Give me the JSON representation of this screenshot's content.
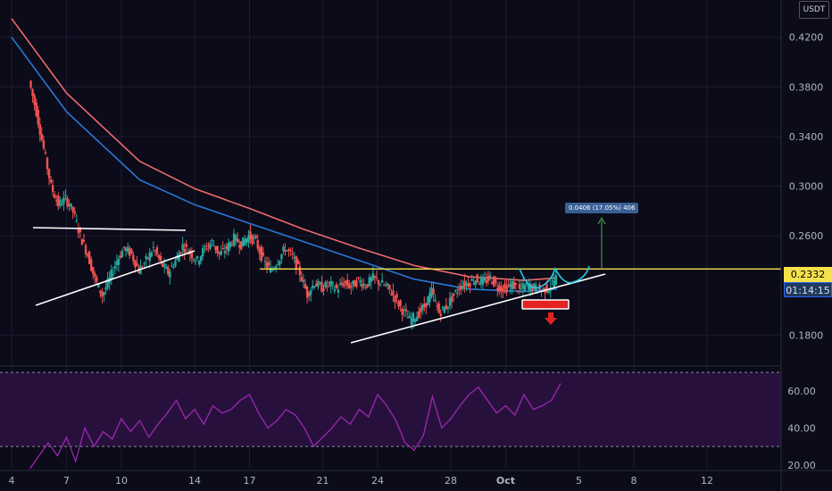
{
  "chart_data": [
    {
      "type": "candlestick",
      "unit": "USDT",
      "price_axis": {
        "ticks": [
          "0.4200",
          "0.3800",
          "0.3400",
          "0.3000",
          "0.2600",
          "0.1800"
        ],
        "tick_values": [
          0.42,
          0.38,
          0.34,
          0.3,
          0.26,
          0.18
        ],
        "range": [
          0.155,
          0.45
        ]
      },
      "time_axis": {
        "ticks": [
          "4",
          "7",
          "10",
          "14",
          "17",
          "21",
          "24",
          "28",
          "Oct",
          "5",
          "8",
          "12"
        ],
        "tick_days": [
          4,
          7,
          10,
          14,
          17,
          21,
          24,
          28,
          31,
          35,
          38,
          42
        ]
      },
      "current_price": "0.2332",
      "countdown": "01:14:15",
      "resistance_level": 0.2332,
      "measure_label": "0.0406 (17.05%) 406",
      "close_series": [
        [
          1.0,
          0.385
        ],
        [
          1.4,
          0.36
        ],
        [
          1.8,
          0.33
        ],
        [
          2.2,
          0.3
        ],
        [
          2.6,
          0.285
        ],
        [
          3.0,
          0.29
        ],
        [
          3.4,
          0.28
        ],
        [
          3.8,
          0.26
        ],
        [
          4.2,
          0.245
        ],
        [
          4.6,
          0.225
        ],
        [
          5.0,
          0.212
        ],
        [
          5.4,
          0.225
        ],
        [
          5.8,
          0.24
        ],
        [
          6.2,
          0.25
        ],
        [
          6.6,
          0.245
        ],
        [
          7.0,
          0.232
        ],
        [
          7.4,
          0.24
        ],
        [
          7.8,
          0.25
        ],
        [
          8.2,
          0.238
        ],
        [
          8.6,
          0.23
        ],
        [
          9.0,
          0.24
        ],
        [
          9.4,
          0.252
        ],
        [
          9.8,
          0.246
        ],
        [
          10.2,
          0.24
        ],
        [
          10.6,
          0.25
        ],
        [
          11.0,
          0.255
        ],
        [
          11.4,
          0.245
        ],
        [
          11.8,
          0.25
        ],
        [
          12.2,
          0.258
        ],
        [
          12.6,
          0.253
        ],
        [
          13.0,
          0.26
        ],
        [
          13.4,
          0.255
        ],
        [
          13.8,
          0.24
        ],
        [
          14.2,
          0.232
        ],
        [
          14.6,
          0.24
        ],
        [
          15.0,
          0.25
        ],
        [
          15.4,
          0.243
        ],
        [
          15.8,
          0.23
        ],
        [
          16.2,
          0.213
        ],
        [
          16.6,
          0.222
        ],
        [
          17.0,
          0.218
        ],
        [
          17.4,
          0.221
        ],
        [
          17.8,
          0.217
        ],
        [
          18.2,
          0.222
        ],
        [
          18.6,
          0.219
        ],
        [
          19.0,
          0.224
        ],
        [
          19.4,
          0.22
        ],
        [
          19.8,
          0.226
        ],
        [
          20.2,
          0.222
        ],
        [
          20.6,
          0.218
        ],
        [
          21.0,
          0.21
        ],
        [
          21.4,
          0.2
        ],
        [
          21.8,
          0.192
        ],
        [
          22.2,
          0.196
        ],
        [
          22.6,
          0.203
        ],
        [
          23.0,
          0.215
        ],
        [
          23.4,
          0.198
        ],
        [
          23.8,
          0.203
        ],
        [
          24.2,
          0.212
        ],
        [
          24.6,
          0.22
        ],
        [
          25.0,
          0.222
        ],
        [
          25.4,
          0.225
        ],
        [
          25.8,
          0.222
        ],
        [
          26.2,
          0.226
        ],
        [
          26.6,
          0.219
        ],
        [
          27.0,
          0.217
        ],
        [
          27.4,
          0.221
        ],
        [
          27.8,
          0.216
        ],
        [
          28.2,
          0.22
        ],
        [
          28.6,
          0.218
        ],
        [
          29.0,
          0.216
        ],
        [
          29.4,
          0.218
        ],
        [
          29.8,
          0.226
        ]
      ],
      "ema_fast": [
        [
          0,
          0.42
        ],
        [
          3,
          0.36
        ],
        [
          7,
          0.305
        ],
        [
          10,
          0.285
        ],
        [
          13,
          0.27
        ],
        [
          16,
          0.255
        ],
        [
          19,
          0.24
        ],
        [
          22,
          0.225
        ],
        [
          25,
          0.217
        ],
        [
          28,
          0.215
        ],
        [
          29.8,
          0.217
        ]
      ],
      "ema_slow": [
        [
          0,
          0.435
        ],
        [
          3,
          0.375
        ],
        [
          7,
          0.32
        ],
        [
          10,
          0.298
        ],
        [
          13,
          0.282
        ],
        [
          16,
          0.265
        ],
        [
          19,
          0.25
        ],
        [
          22,
          0.236
        ],
        [
          25,
          0.227
        ],
        [
          28,
          0.224
        ],
        [
          29.8,
          0.226
        ]
      ]
    },
    {
      "type": "line",
      "indicator": "RSI",
      "y_ticks": [
        "60.00",
        "40.00",
        "20.00"
      ],
      "y_tick_values": [
        60,
        40,
        20
      ],
      "range": [
        18,
        72
      ],
      "bands": [
        70,
        30
      ],
      "values": [
        [
          1.0,
          18
        ],
        [
          2.0,
          32
        ],
        [
          2.5,
          25
        ],
        [
          3.0,
          35
        ],
        [
          3.5,
          22
        ],
        [
          4.0,
          40
        ],
        [
          4.5,
          30
        ],
        [
          5.0,
          38
        ],
        [
          5.5,
          34
        ],
        [
          6.0,
          45
        ],
        [
          6.5,
          38
        ],
        [
          7.0,
          44
        ],
        [
          7.5,
          35
        ],
        [
          8.0,
          42
        ],
        [
          8.5,
          48
        ],
        [
          9.0,
          55
        ],
        [
          9.5,
          45
        ],
        [
          10.0,
          50
        ],
        [
          10.5,
          42
        ],
        [
          11.0,
          52
        ],
        [
          11.5,
          48
        ],
        [
          12.0,
          50
        ],
        [
          12.5,
          55
        ],
        [
          13.0,
          58
        ],
        [
          13.5,
          48
        ],
        [
          14.0,
          40
        ],
        [
          14.5,
          44
        ],
        [
          15.0,
          50
        ],
        [
          15.5,
          47
        ],
        [
          16.0,
          40
        ],
        [
          16.5,
          30
        ],
        [
          17.0,
          35
        ],
        [
          17.5,
          40
        ],
        [
          18.0,
          46
        ],
        [
          18.5,
          42
        ],
        [
          19.0,
          50
        ],
        [
          19.5,
          46
        ],
        [
          20.0,
          58
        ],
        [
          20.5,
          52
        ],
        [
          21.0,
          44
        ],
        [
          21.5,
          32
        ],
        [
          22.0,
          28
        ],
        [
          22.5,
          36
        ],
        [
          23.0,
          57
        ],
        [
          23.5,
          40
        ],
        [
          24.0,
          45
        ],
        [
          24.5,
          52
        ],
        [
          25.0,
          58
        ],
        [
          25.5,
          62
        ],
        [
          26.0,
          55
        ],
        [
          26.5,
          48
        ],
        [
          27.0,
          52
        ],
        [
          27.5,
          47
        ],
        [
          28.0,
          58
        ],
        [
          28.5,
          50
        ],
        [
          29.0,
          52
        ],
        [
          29.5,
          55
        ],
        [
          30.0,
          64
        ]
      ]
    }
  ],
  "colors": {
    "background": "#0b0b1a",
    "up": "#26a69a",
    "down": "#ef5350",
    "ema_fast": "#2a78d6",
    "ema_slow": "#f06a6a",
    "resistance": "#f5e24a",
    "trendline": "#ffffff",
    "projection": "#27c9e8",
    "measure_arrow": "#4caf50",
    "breakdown": "#e52222",
    "rsi_line": "#9c27b0",
    "rsi_fill": "#2a1240",
    "grid": "#1c1c2e",
    "axis_text": "#b2b5be"
  }
}
